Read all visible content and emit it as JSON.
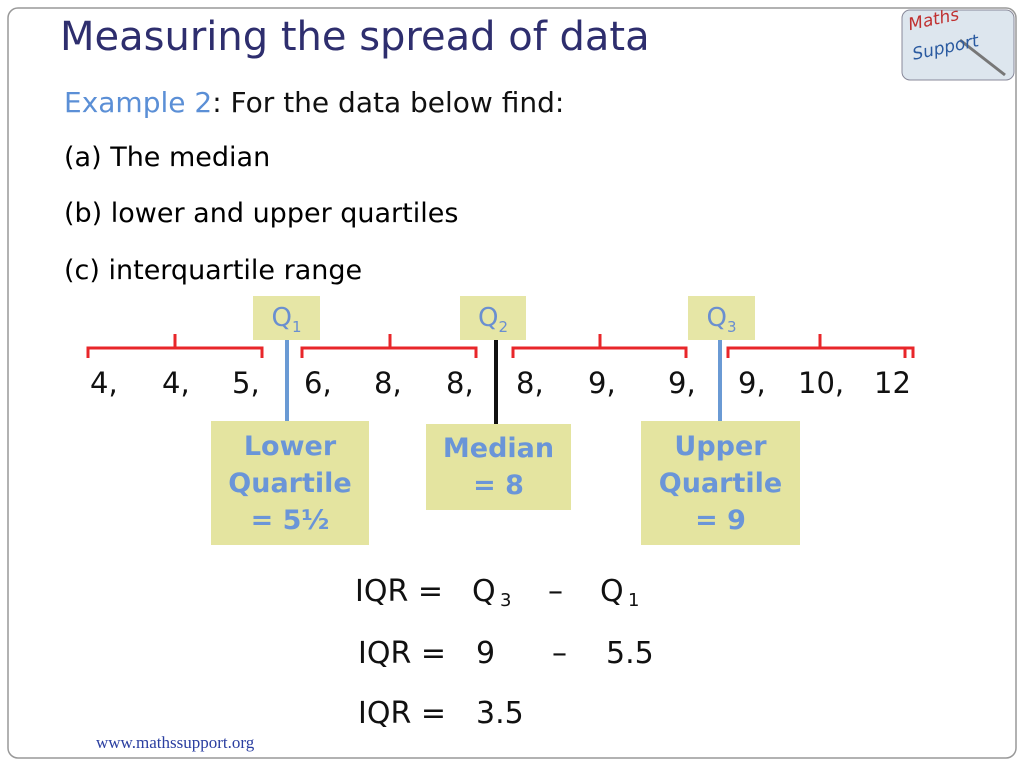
{
  "title": "Measuring the spread of data",
  "example": {
    "label": "Example 2",
    "text": ": For the data below find:"
  },
  "questions": [
    "(a) The median",
    "(b) lower and upper quartiles",
    "(c) interquartile range"
  ],
  "markers": [
    {
      "letter": "Q",
      "sub": "1"
    },
    {
      "letter": "Q",
      "sub": "2"
    },
    {
      "letter": "Q",
      "sub": "3"
    }
  ],
  "data_values": [
    "4,",
    "4,",
    "5,",
    "6,",
    "8,",
    "8,",
    "8,",
    "9,",
    "9,",
    "9,",
    "10,",
    "12"
  ],
  "boxes": [
    {
      "lines": [
        "Lower",
        "Quartile",
        "= 5½"
      ]
    },
    {
      "lines": [
        "Median",
        "= 8"
      ]
    },
    {
      "lines": [
        "Upper",
        "Quartile",
        "= 9"
      ]
    }
  ],
  "iqr": [
    [
      "IQR =",
      "Q",
      "3",
      "–",
      "Q",
      "1"
    ],
    [
      "IQR =",
      "9",
      "–",
      "5.5"
    ],
    [
      "IQR =",
      "3.5"
    ]
  ],
  "logo": [
    "Maths",
    "Support"
  ],
  "footer": "www.mathssupport.org"
}
